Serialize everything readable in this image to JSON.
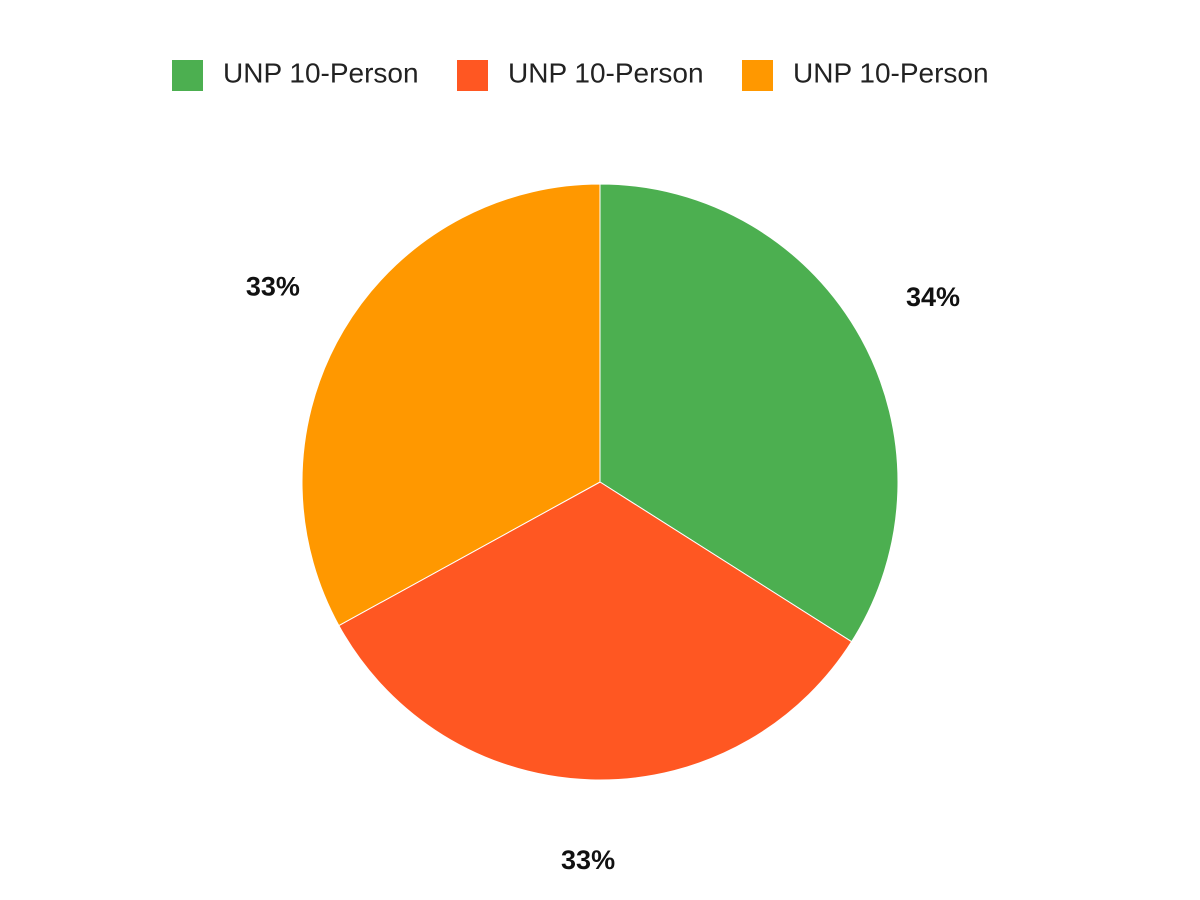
{
  "chart_data": {
    "type": "pie",
    "title": "",
    "legend_position": "top",
    "slices": [
      {
        "name": "UNP 10-Person",
        "value": 34,
        "label": "34%",
        "color": "#4CAF50"
      },
      {
        "name": "UNP 10-Person",
        "value": 33,
        "label": "33%",
        "color": "#FF5722"
      },
      {
        "name": "UNP 10-Person",
        "value": 33,
        "label": "33%",
        "color": "#FF9800"
      }
    ]
  }
}
